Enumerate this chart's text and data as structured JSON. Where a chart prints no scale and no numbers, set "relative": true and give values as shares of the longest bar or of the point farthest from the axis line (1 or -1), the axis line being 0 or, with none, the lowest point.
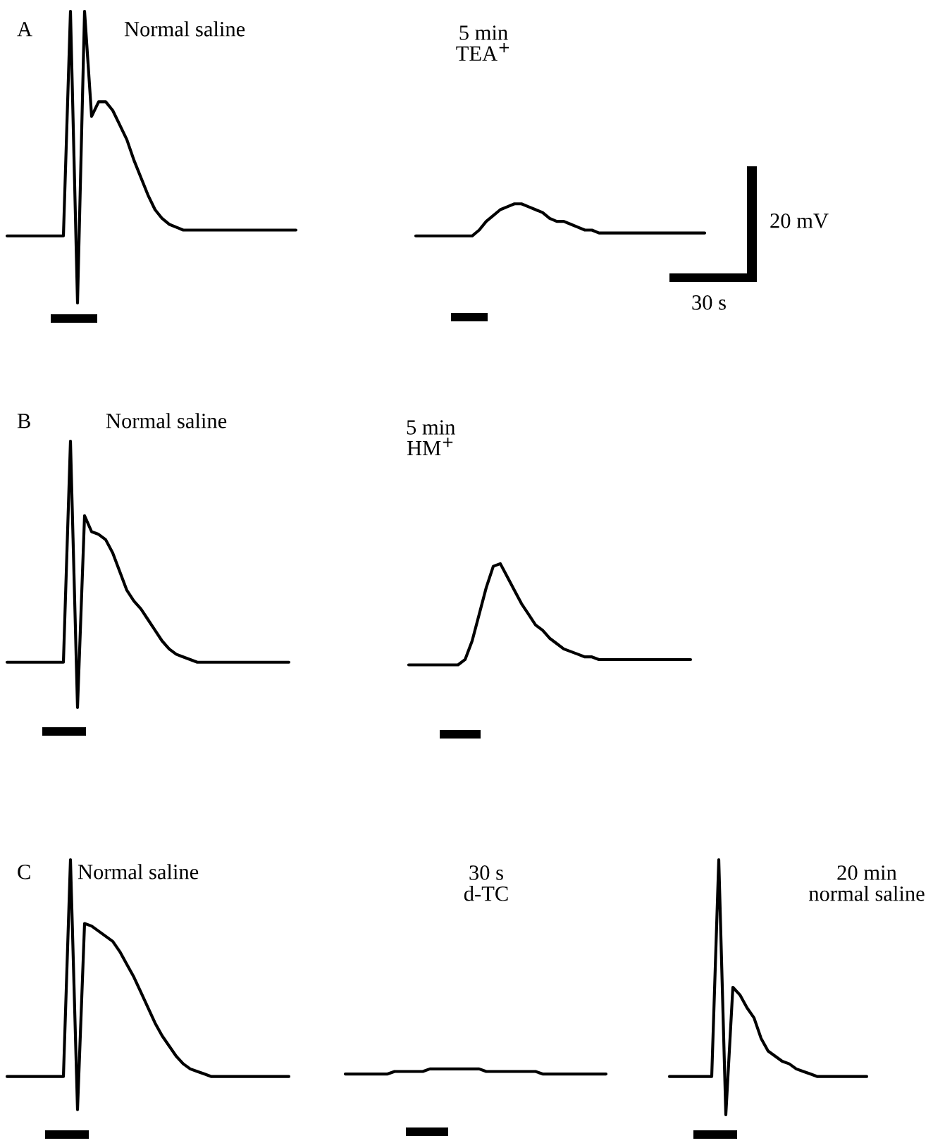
{
  "chart_data": [
    {
      "type": "line",
      "relative": true,
      "categories": [
        null,
        null,
        null,
        null,
        null,
        null,
        null,
        null,
        null,
        null,
        null,
        null,
        null,
        null,
        null,
        null,
        null,
        null,
        null,
        null,
        null,
        null,
        null,
        null,
        null,
        null,
        null,
        null,
        null,
        null,
        null,
        null,
        null,
        null,
        null,
        null,
        null,
        null,
        null,
        null,
        null,
        null,
        null,
        null,
        null,
        null,
        null,
        null,
        null,
        null,
        null,
        null,
        null,
        null,
        null,
        null,
        null,
        null,
        null,
        null,
        null,
        null,
        null,
        null,
        null,
        null,
        null,
        null,
        null,
        null,
        null,
        null,
        null,
        null,
        null,
        null,
        null,
        null,
        null,
        null,
        null,
        null,
        null,
        null,
        null,
        null,
        null,
        null,
        null,
        null,
        null,
        null,
        null,
        null,
        null,
        null,
        null,
        null,
        null,
        null
      ],
      "series": [
        {
          "color": "#000000",
          "values": [
            0.23,
            0.23,
            0.23,
            0.23,
            0.23,
            0.23,
            0.23,
            0.23,
            0.23,
            1,
            0,
            1,
            0.64,
            0.69,
            0.69,
            0.66,
            0.61,
            0.56,
            0.49,
            0.43,
            0.37,
            0.32,
            0.29,
            0.27,
            0.26,
            0.25,
            0.25,
            0.25,
            0.25,
            0.25,
            0.25,
            0.25,
            0.25,
            0.25,
            0.25,
            0.25,
            0.25,
            0.25,
            0.25,
            0.25,
            0.25,
            0.25,
            null,
            null,
            null,
            null,
            null,
            null,
            null,
            null,
            null,
            null,
            null,
            null,
            null,
            null,
            null,
            null,
            null,
            null,
            null,
            null,
            null,
            null,
            null,
            null,
            null,
            null,
            null,
            null,
            null,
            null,
            null,
            null,
            null,
            null,
            null,
            null,
            null,
            null,
            null,
            null,
            null,
            null,
            null,
            null,
            null,
            null,
            null,
            null,
            null,
            null,
            null,
            null,
            null,
            null,
            null,
            null,
            null,
            null
          ]
        },
        {
          "color": "#000000",
          "values": [
            null,
            null,
            null,
            null,
            null,
            null,
            null,
            null,
            null,
            null,
            null,
            null,
            null,
            null,
            null,
            null,
            null,
            null,
            null,
            null,
            null,
            null,
            null,
            null,
            null,
            null,
            null,
            null,
            null,
            null,
            null,
            null,
            null,
            null,
            null,
            null,
            null,
            null,
            null,
            null,
            null,
            null,
            null,
            null,
            null,
            null,
            null,
            null,
            null,
            null,
            null,
            null,
            null,
            null,
            null,
            null,
            null,
            null,
            0.23,
            0.23,
            0.23,
            0.23,
            0.23,
            0.23,
            0.23,
            0.23,
            0.23,
            0.25,
            0.28,
            0.3,
            0.32,
            0.33,
            0.34,
            0.34,
            0.33,
            0.32,
            0.31,
            0.29,
            0.28,
            0.28,
            0.27,
            0.26,
            0.25,
            0.25,
            0.24,
            0.24,
            0.24,
            0.24,
            0.24,
            0.24,
            0.24,
            0.24,
            0.24,
            0.24,
            0.24,
            0.24,
            0.24,
            0.24,
            0.24,
            0.24
          ]
        }
      ],
      "annotations": [
        "A",
        "Normal saline",
        "5 min\nTEA$^{+}$",
        "20 mV",
        "30 s"
      ]
    },
    {
      "type": "line",
      "relative": true,
      "categories": [
        null,
        null,
        null,
        null,
        null,
        null,
        null,
        null,
        null,
        null,
        null,
        null,
        null,
        null,
        null,
        null,
        null,
        null,
        null,
        null,
        null,
        null,
        null,
        null,
        null,
        null,
        null,
        null,
        null,
        null,
        null,
        null,
        null,
        null,
        null,
        null,
        null,
        null,
        null,
        null,
        null,
        null,
        null,
        null,
        null,
        null,
        null,
        null,
        null,
        null,
        null,
        null,
        null,
        null,
        null,
        null,
        null,
        null,
        null,
        null,
        null,
        null,
        null,
        null,
        null,
        null,
        null,
        null,
        null,
        null,
        null,
        null,
        null,
        null,
        null,
        null,
        null,
        null,
        null,
        null,
        null,
        null,
        null,
        null,
        null,
        null,
        null,
        null,
        null,
        null,
        null,
        null,
        null,
        null,
        null,
        null,
        null,
        null
      ],
      "series": [
        {
          "color": "#000000",
          "values": [
            0.17,
            0.17,
            0.17,
            0.17,
            0.17,
            0.17,
            0.17,
            0.17,
            0.17,
            1,
            0,
            0.72,
            0.66,
            0.65,
            0.63,
            0.58,
            0.51,
            0.44,
            0.4,
            0.37,
            0.33,
            0.29,
            0.25,
            0.22,
            0.2,
            0.19,
            0.18,
            0.17,
            0.17,
            0.17,
            0.17,
            0.17,
            0.17,
            0.17,
            0.17,
            0.17,
            0.17,
            0.17,
            0.17,
            0.17,
            0.17,
            null,
            null,
            null,
            null,
            null,
            null,
            null,
            null,
            null,
            null,
            null,
            null,
            null,
            null,
            null,
            null,
            null,
            null,
            null,
            null,
            null,
            null,
            null,
            null,
            null,
            null,
            null,
            null,
            null,
            null,
            null,
            null,
            null,
            null,
            null,
            null,
            null,
            null,
            null,
            null,
            null,
            null,
            null,
            null,
            null,
            null,
            null,
            null,
            null,
            null,
            null,
            null,
            null,
            null,
            null,
            null,
            null
          ]
        },
        {
          "color": "#000000",
          "values": [
            null,
            null,
            null,
            null,
            null,
            null,
            null,
            null,
            null,
            null,
            null,
            null,
            null,
            null,
            null,
            null,
            null,
            null,
            null,
            null,
            null,
            null,
            null,
            null,
            null,
            null,
            null,
            null,
            null,
            null,
            null,
            null,
            null,
            null,
            null,
            null,
            null,
            null,
            null,
            null,
            null,
            null,
            null,
            null,
            null,
            null,
            null,
            null,
            null,
            null,
            null,
            null,
            null,
            null,
            null,
            null,
            null,
            0.16,
            0.16,
            0.16,
            0.16,
            0.16,
            0.16,
            0.16,
            0.16,
            0.18,
            0.25,
            0.35,
            0.45,
            0.53,
            0.54,
            0.49,
            0.44,
            0.39,
            0.35,
            0.31,
            0.29,
            0.26,
            0.24,
            0.22,
            0.21,
            0.2,
            0.19,
            0.19,
            0.18,
            0.18,
            0.18,
            0.18,
            0.18,
            0.18,
            0.18,
            0.18,
            0.18,
            0.18,
            0.18,
            0.18,
            0.18,
            0.18
          ]
        }
      ],
      "annotations": [
        "B",
        "Normal saline",
        "5 min\nHM$^{+}$"
      ]
    },
    {
      "type": "line",
      "relative": true,
      "categories": [
        null,
        null,
        null,
        null,
        null,
        null,
        null,
        null,
        null,
        null,
        null,
        null,
        null,
        null,
        null,
        null,
        null,
        null,
        null,
        null,
        null,
        null,
        null,
        null,
        null,
        null,
        null,
        null,
        null,
        null,
        null,
        null,
        null,
        null,
        null,
        null,
        null,
        null,
        null,
        null,
        null,
        null,
        null,
        null,
        null,
        null,
        null,
        null,
        null,
        null,
        null,
        null,
        null,
        null,
        null,
        null,
        null,
        null,
        null,
        null,
        null,
        null,
        null,
        null,
        null,
        null,
        null,
        null,
        null,
        null,
        null,
        null,
        null,
        null,
        null,
        null,
        null,
        null,
        null,
        null,
        null,
        null,
        null,
        null,
        null,
        null,
        null,
        null,
        null,
        null,
        null,
        null,
        null,
        null,
        null,
        null,
        null,
        null,
        null,
        null,
        null,
        null,
        null,
        null,
        null,
        null,
        null,
        null,
        null,
        null,
        null,
        null,
        null,
        null,
        null,
        null,
        null,
        null,
        null,
        null,
        null,
        null,
        null
      ],
      "series": [
        {
          "color": "#000000",
          "values": [
            0.15,
            0.15,
            0.15,
            0.15,
            0.15,
            0.15,
            0.15,
            0.15,
            0.15,
            1,
            0.02,
            0.75,
            0.74,
            0.72,
            0.7,
            0.68,
            0.64,
            0.59,
            0.54,
            0.48,
            0.42,
            0.36,
            0.31,
            0.27,
            0.23,
            0.2,
            0.18,
            0.17,
            0.16,
            0.15,
            0.15,
            0.15,
            0.15,
            0.15,
            0.15,
            0.15,
            0.15,
            0.15,
            0.15,
            0.15,
            0.15,
            null,
            null,
            null,
            null,
            null,
            null,
            null,
            null,
            null,
            null,
            null,
            null,
            null,
            null,
            null,
            null,
            null,
            null,
            null,
            null,
            null,
            null,
            null,
            null,
            null,
            null,
            null,
            null,
            null,
            null,
            null,
            null,
            null,
            null,
            null,
            null,
            null,
            null,
            null,
            null,
            null,
            null,
            null,
            null,
            null,
            null,
            null,
            null,
            null,
            null,
            null,
            null,
            null,
            null,
            null,
            null,
            null,
            null,
            null,
            null,
            null,
            null,
            null,
            null,
            null,
            null,
            null,
            null,
            null,
            null,
            null,
            null,
            null,
            null,
            null,
            null,
            null,
            null,
            null,
            null,
            null,
            null
          ]
        },
        {
          "color": "#000000",
          "values": [
            null,
            null,
            null,
            null,
            null,
            null,
            null,
            null,
            null,
            null,
            null,
            null,
            null,
            null,
            null,
            null,
            null,
            null,
            null,
            null,
            null,
            null,
            null,
            null,
            null,
            null,
            null,
            null,
            null,
            null,
            null,
            null,
            null,
            null,
            null,
            null,
            null,
            null,
            null,
            null,
            null,
            null,
            null,
            null,
            null,
            null,
            null,
            null,
            0.16,
            0.16,
            0.16,
            0.16,
            0.16,
            0.16,
            0.16,
            0.17,
            0.17,
            0.17,
            0.17,
            0.17,
            0.18,
            0.18,
            0.18,
            0.18,
            0.18,
            0.18,
            0.18,
            0.18,
            0.17,
            0.17,
            0.17,
            0.17,
            0.17,
            0.17,
            0.17,
            0.17,
            0.16,
            0.16,
            0.16,
            0.16,
            0.16,
            0.16,
            0.16,
            0.16,
            0.16,
            0.16,
            null,
            null,
            null,
            null,
            null,
            null,
            null,
            null,
            null,
            null,
            null,
            null,
            null,
            null,
            null,
            null,
            null,
            null,
            null,
            null,
            null,
            null,
            null,
            null,
            null,
            null,
            null,
            null,
            null,
            null,
            null,
            null,
            null,
            null,
            null,
            null,
            null
          ]
        },
        {
          "color": "#000000",
          "values": [
            null,
            null,
            null,
            null,
            null,
            null,
            null,
            null,
            null,
            null,
            null,
            null,
            null,
            null,
            null,
            null,
            null,
            null,
            null,
            null,
            null,
            null,
            null,
            null,
            null,
            null,
            null,
            null,
            null,
            null,
            null,
            null,
            null,
            null,
            null,
            null,
            null,
            null,
            null,
            null,
            null,
            null,
            null,
            null,
            null,
            null,
            null,
            null,
            null,
            null,
            null,
            null,
            null,
            null,
            null,
            null,
            null,
            null,
            null,
            null,
            null,
            null,
            null,
            null,
            null,
            null,
            null,
            null,
            null,
            null,
            null,
            null,
            null,
            null,
            null,
            null,
            null,
            null,
            null,
            null,
            null,
            null,
            null,
            null,
            null,
            null,
            null,
            null,
            null,
            null,
            null,
            null,
            null,
            null,
            0.15,
            0.15,
            0.15,
            0.15,
            0.15,
            0.15,
            0.15,
            1,
            0,
            0.5,
            0.47,
            0.42,
            0.38,
            0.3,
            0.25,
            0.23,
            0.21,
            0.2,
            0.18,
            0.17,
            0.16,
            0.15,
            0.15,
            0.15,
            0.15,
            0.15,
            0.15,
            0.15,
            0.15
          ]
        }
      ],
      "annotations": [
        "C",
        "Normal saline",
        "30 s\nd-TC",
        "20 min\nnormal saline"
      ]
    }
  ]
}
